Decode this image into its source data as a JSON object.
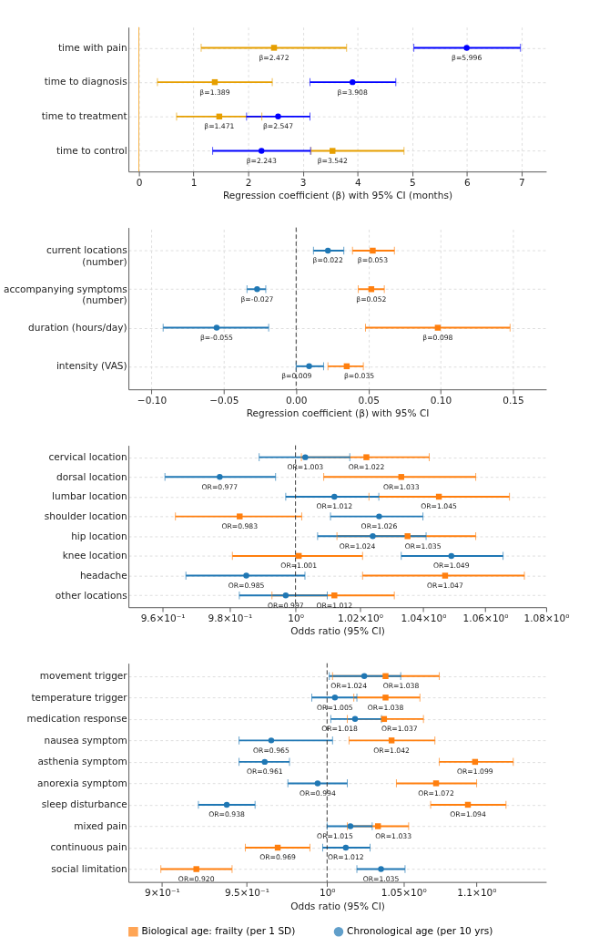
{
  "chart_data": [
    {
      "type": "scatter",
      "orientation": "horizontal",
      "categories": [
        "time with pain",
        "time to diagnosis",
        "time to treatment",
        "time to control"
      ],
      "xlabel": "Regression coefficient (β) with 95% CI (months)",
      "xlim": [
        -0.19,
        7.45
      ],
      "xticks": [
        0,
        1,
        2,
        3,
        4,
        5,
        6,
        7
      ],
      "grid": true,
      "ref_lines": [
        {
          "axis": "x",
          "value": 0,
          "color": "#f5b041",
          "line_style": "solid"
        }
      ],
      "series": [
        {
          "color": "#e69f00",
          "marker": "square",
          "values": [
            2.472,
            1.389,
            1.471,
            3.542
          ],
          "errors": [
            [
              1.14,
              3.8
            ],
            [
              0.34,
              2.44
            ],
            [
              0.69,
              2.25
            ],
            [
              3.15,
              4.85
            ]
          ],
          "value_labels": [
            "β=2.472",
            "β=1.389",
            "β=1.471",
            "β=3.542"
          ]
        },
        {
          "color": "#0000ff",
          "marker": "circle",
          "values": [
            5.996,
            3.908,
            2.547,
            2.243
          ],
          "errors": [
            [
              5.03,
              6.98
            ],
            [
              3.13,
              4.7
            ],
            [
              1.97,
              3.13
            ],
            [
              1.35,
              3.14
            ]
          ],
          "value_labels": [
            "β=5.996",
            "β=3.908",
            "β=2.547",
            "β=2.243"
          ]
        }
      ]
    },
    {
      "type": "scatter",
      "orientation": "horizontal",
      "categories": [
        "current locations\n(number)",
        "accompanying symptoms\n(number)",
        "duration (hours/day)",
        "intensity (VAS)"
      ],
      "xlabel": "Regression coefficient (β) with 95% CI",
      "xlim": [
        -0.116,
        0.173
      ],
      "xticks": [
        {
          "value": -0.1,
          "label": "−0.10"
        },
        {
          "value": -0.05,
          "label": "−0.05"
        },
        {
          "value": 0,
          "label": "0.00"
        },
        {
          "value": 0.05,
          "label": "0.05"
        },
        {
          "value": 0.1,
          "label": "0.10"
        },
        {
          "value": 0.15,
          "label": "0.15"
        }
      ],
      "grid": true,
      "ref_lines": [
        {
          "axis": "x",
          "value": 0,
          "color": "#333333",
          "line_style": "dashed"
        }
      ],
      "series": [
        {
          "color": "#ff7f0e",
          "marker": "square",
          "values": [
            0.053,
            0.052,
            0.098,
            0.035
          ],
          "errors": [
            [
              0.039,
              0.068
            ],
            [
              0.043,
              0.061
            ],
            [
              0.048,
              0.148
            ],
            [
              0.022,
              0.0465
            ]
          ],
          "value_labels": [
            "β=0.053",
            "β=0.052",
            "β=0.098",
            "β=0.035"
          ]
        },
        {
          "color": "#1f77b4",
          "marker": "circle",
          "values": [
            0.022,
            -0.027,
            -0.055,
            0.009
          ],
          "errors": [
            [
              0.012,
              0.033
            ],
            [
              -0.034,
              -0.021
            ],
            [
              -0.092,
              -0.019
            ],
            [
              0.0,
              0.019
            ]
          ],
          "value_labels": [
            "β=0.022",
            "β=-0.027",
            "β=-0.055",
            "β=0.009"
          ]
        }
      ]
    },
    {
      "type": "scatter",
      "orientation": "horizontal",
      "categories": [
        "cervical location",
        "dorsal location",
        "lumbar location",
        "shoulder location",
        "hip location",
        "knee location",
        "headache",
        "other locations"
      ],
      "xlabel": "Odds ratio (95% CI)",
      "xlim": [
        0.95,
        1.08
      ],
      "log": "x",
      "xticks": [
        {
          "value": 0.96,
          "label": "9.6×10⁻¹"
        },
        {
          "value": 0.98,
          "label": "9.8×10⁻¹"
        },
        {
          "value": 1,
          "label": "10⁰"
        },
        {
          "value": 1.02,
          "label": "1.02×10⁰"
        },
        {
          "value": 1.04,
          "label": "1.04×10⁰"
        },
        {
          "value": 1.06,
          "label": "1.06×10⁰"
        },
        {
          "value": 1.08,
          "label": "1.08×10⁰"
        }
      ],
      "grid": "y",
      "ref_lines": [
        {
          "axis": "x",
          "value": 1,
          "color": "#333333",
          "line_style": "dashed"
        }
      ],
      "series": [
        {
          "color": "#ff7f0e",
          "marker": "square",
          "values": [
            1.022,
            1.033,
            1.045,
            0.983,
            1.035,
            1.001,
            1.047,
            1.012
          ],
          "errors": [
            [
              1.0018,
              1.0419
            ],
            [
              1.0087,
              1.0569
            ],
            [
              1.0228,
              1.0679
            ],
            [
              0.9638,
              1.0019
            ],
            [
              1.0128,
              1.0569
            ],
            [
              0.9808,
              1.0208
            ],
            [
              1.0208,
              1.0728
            ],
            [
              0.9928,
              1.0308
            ]
          ],
          "value_labels": [
            "OR=1.022",
            "OR=1.033",
            "OR=1.045",
            "OR=0.983",
            "OR=1.035",
            "OR=1.001",
            "OR=1.047",
            "OR=1.012"
          ]
        },
        {
          "color": "#1f77b4",
          "marker": "circle",
          "values": [
            1.003,
            0.977,
            1.012,
            1.026,
            1.024,
            1.049,
            0.985,
            0.997
          ],
          "errors": [
            [
              0.9889,
              1.0168
            ],
            [
              0.9607,
              0.9939
            ],
            [
              0.997,
              1.0259
            ],
            [
              1.0108,
              1.0399
            ],
            [
              1.0068,
              1.0409
            ],
            [
              1.033,
              1.0658
            ],
            [
              0.9669,
              1.0029
            ],
            [
              0.9829,
              1.0098
            ]
          ],
          "value_labels": [
            "OR=1.003",
            "OR=0.977",
            "OR=1.012",
            "OR=1.026",
            "OR=1.024",
            "OR=1.049",
            "OR=0.985",
            "OR=0.997"
          ]
        }
      ]
    },
    {
      "type": "scatter",
      "orientation": "horizontal",
      "categories": [
        "movement trigger",
        "temperature trigger",
        "medication response",
        "nausea symptom",
        "asthenia symptom",
        "anorexia symptom",
        "sleep disturbance",
        "mixed pain",
        "continuous pain",
        "social limitation"
      ],
      "xlabel": "Odds ratio (95% CI)",
      "xlim": [
        0.881,
        1.15
      ],
      "log": "x",
      "xticks": [
        {
          "value": 0.9,
          "label": "9×10⁻¹"
        },
        {
          "value": 0.95,
          "label": "9.5×10⁻¹"
        },
        {
          "value": 1,
          "label": "10⁰"
        },
        {
          "value": 1.05,
          "label": "1.05×10⁰"
        },
        {
          "value": 1.1,
          "label": "1.1×10⁰"
        }
      ],
      "grid": "y",
      "legend": "bottom",
      "ref_lines": [
        {
          "axis": "x",
          "value": 1,
          "color": "#333333",
          "line_style": "dashed"
        }
      ],
      "series": [
        {
          "name": "Biological age: frailty (per 1 SD)",
          "color": "#ff7f0e",
          "marker": "square",
          "values": [
            1.038,
            1.038,
            1.037,
            1.042,
            1.099,
            1.072,
            1.094,
            1.033,
            0.969,
            0.92
          ],
          "errors": [
            [
              1.0035,
              1.0742
            ],
            [
              1.0172,
              1.061
            ],
            [
              1.013,
              1.0634
            ],
            [
              1.0141,
              1.0712
            ],
            [
              1.0742,
              1.1261
            ],
            [
              1.0452,
              1.1001
            ],
            [
              1.0683,
              1.1209
            ],
            [
              1.013,
              1.0534
            ],
            [
              0.9492,
              0.9891
            ],
            [
              0.8994,
              0.9412
            ]
          ],
          "value_labels": [
            "OR=1.038",
            "OR=1.038",
            "OR=1.037",
            "OR=1.042",
            "OR=1.099",
            "OR=1.072",
            "OR=1.094",
            "OR=1.033",
            "OR=0.969",
            "OR=0.920"
          ]
        },
        {
          "name": "Chronological age (per 10 yrs)",
          "color": "#1f77b4",
          "marker": "circle",
          "values": [
            1.024,
            1.005,
            1.018,
            0.965,
            0.961,
            0.994,
            0.938,
            1.015,
            1.012,
            1.035
          ],
          "errors": [
            [
              1.0014,
              1.0481
            ],
            [
              0.9903,
              1.0192
            ],
            [
              1.0024,
              1.0353
            ],
            [
              0.9454,
              1.0035
            ],
            [
              0.9454,
              0.9763
            ],
            [
              0.9753,
              1.013
            ],
            [
              0.9212,
              0.9551
            ],
            [
              1.0,
              1.0292
            ],
            [
              0.9972,
              1.0278
            ],
            [
              1.0192,
              1.051
            ]
          ],
          "value_labels": [
            "OR=1.024",
            "OR=1.005",
            "OR=1.018",
            "OR=0.965",
            "OR=0.961",
            "OR=0.994",
            "OR=0.938",
            "OR=1.015",
            "OR=1.012",
            "OR=1.035"
          ]
        }
      ]
    }
  ]
}
